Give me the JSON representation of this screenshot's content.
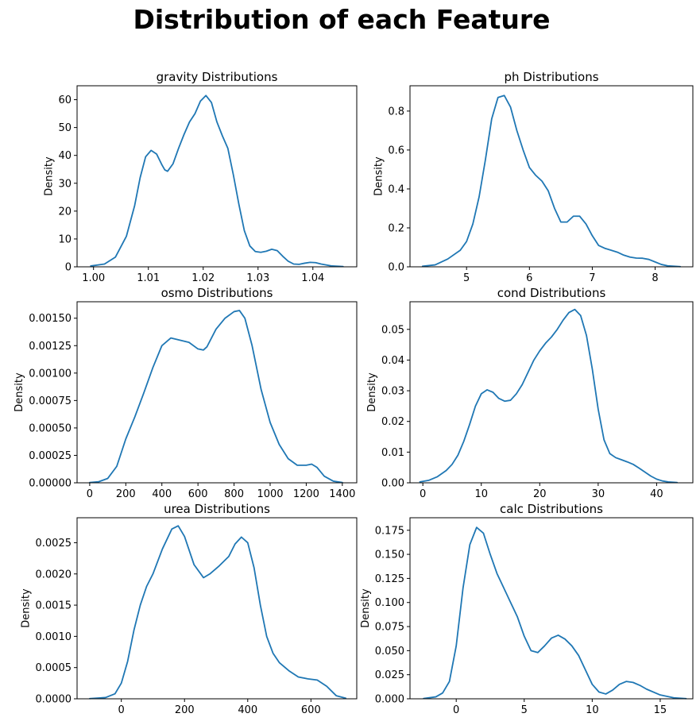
{
  "figure": {
    "title": "Distribution of each Feature",
    "line_color": "#1f77b4"
  },
  "chart_data": [
    {
      "type": "line",
      "title": "gravity Distributions",
      "xlabel": "",
      "ylabel": "Density",
      "xlim": [
        0.997,
        1.048
      ],
      "ylim": [
        0,
        65
      ],
      "xticks": [
        1.0,
        1.01,
        1.02,
        1.03,
        1.04
      ],
      "xtick_labels": [
        "1.00",
        "1.01",
        "1.02",
        "1.03",
        "1.04"
      ],
      "yticks": [
        0,
        10,
        20,
        30,
        40,
        50,
        60
      ],
      "ytick_labels": [
        "0",
        "10",
        "20",
        "30",
        "40",
        "50",
        "60"
      ],
      "x": [
        0.9995,
        1.002,
        1.004,
        1.006,
        1.0075,
        1.0085,
        1.0095,
        1.0105,
        1.0115,
        1.0125,
        1.013,
        1.0135,
        1.0145,
        1.0155,
        1.0165,
        1.0175,
        1.0185,
        1.0195,
        1.0205,
        1.0215,
        1.0225,
        1.0235,
        1.0245,
        1.0255,
        1.0265,
        1.0275,
        1.0285,
        1.0295,
        1.0305,
        1.0315,
        1.0325,
        1.0335,
        1.0345,
        1.0355,
        1.0365,
        1.0375,
        1.0385,
        1.0395,
        1.0405,
        1.0415,
        1.0435,
        1.0455
      ],
      "y": [
        0.3,
        1,
        3.5,
        11,
        22,
        32,
        39.5,
        41.8,
        40.5,
        36.5,
        34.8,
        34.3,
        37,
        42.5,
        47.5,
        52,
        55,
        59.5,
        61.5,
        59,
        52,
        47,
        42.5,
        33,
        22.5,
        13,
        7.5,
        5.5,
        5.2,
        5.6,
        6.3,
        5.8,
        3.8,
        2,
        1,
        0.9,
        1.3,
        1.6,
        1.5,
        1,
        0.3,
        0.1
      ]
    },
    {
      "type": "line",
      "title": "ph Distributions",
      "xlabel": "",
      "ylabel": "Density",
      "xlim": [
        4.1,
        8.6
      ],
      "ylim": [
        0,
        0.93
      ],
      "xticks": [
        5,
        6,
        7,
        8
      ],
      "xtick_labels": [
        "5",
        "6",
        "7",
        "8"
      ],
      "yticks": [
        0.0,
        0.2,
        0.4,
        0.6,
        0.8
      ],
      "ytick_labels": [
        "0.0",
        "0.2",
        "0.4",
        "0.6",
        "0.8"
      ],
      "x": [
        4.3,
        4.5,
        4.7,
        4.9,
        5.0,
        5.1,
        5.2,
        5.3,
        5.4,
        5.5,
        5.6,
        5.7,
        5.8,
        5.9,
        6.0,
        6.1,
        6.2,
        6.3,
        6.4,
        6.5,
        6.6,
        6.7,
        6.8,
        6.9,
        7.0,
        7.1,
        7.2,
        7.3,
        7.4,
        7.5,
        7.6,
        7.7,
        7.8,
        7.9,
        8.0,
        8.1,
        8.2,
        8.4
      ],
      "y": [
        0.003,
        0.01,
        0.04,
        0.085,
        0.13,
        0.22,
        0.36,
        0.55,
        0.76,
        0.87,
        0.88,
        0.82,
        0.7,
        0.6,
        0.51,
        0.47,
        0.44,
        0.39,
        0.3,
        0.23,
        0.23,
        0.26,
        0.26,
        0.22,
        0.16,
        0.11,
        0.095,
        0.085,
        0.075,
        0.06,
        0.05,
        0.045,
        0.044,
        0.038,
        0.025,
        0.012,
        0.005,
        0.001
      ]
    },
    {
      "type": "line",
      "title": "osmo Distributions",
      "xlabel": "",
      "ylabel": "Density",
      "xlim": [
        -70,
        1480
      ],
      "ylim": [
        0,
        0.00165
      ],
      "xticks": [
        0,
        200,
        400,
        600,
        800,
        1000,
        1200,
        1400
      ],
      "xtick_labels": [
        "0",
        "200",
        "400",
        "600",
        "800",
        "1000",
        "1200",
        "1400"
      ],
      "yticks": [
        0,
        0.00025,
        0.0005,
        0.00075,
        0.001,
        0.00125,
        0.0015
      ],
      "ytick_labels": [
        "0.00000",
        "0.00025",
        "0.00050",
        "0.00075",
        "0.00100",
        "0.00125",
        "0.00150"
      ],
      "x": [
        0,
        50,
        100,
        150,
        200,
        250,
        300,
        350,
        400,
        450,
        500,
        550,
        600,
        630,
        650,
        700,
        750,
        800,
        830,
        860,
        900,
        950,
        1000,
        1050,
        1100,
        1150,
        1200,
        1230,
        1260,
        1300,
        1350,
        1400
      ],
      "y": [
        3e-06,
        1e-05,
        4e-05,
        0.00015,
        0.0004,
        0.0006,
        0.00082,
        0.00105,
        0.00125,
        0.00132,
        0.0013,
        0.00128,
        0.00122,
        0.00121,
        0.00124,
        0.0014,
        0.0015,
        0.00156,
        0.00157,
        0.0015,
        0.00125,
        0.00085,
        0.00055,
        0.00035,
        0.00022,
        0.00016,
        0.00016,
        0.00017,
        0.00014,
        6e-05,
        1.5e-05,
        3e-06
      ]
    },
    {
      "type": "line",
      "title": "cond Distributions",
      "xlabel": "",
      "ylabel": "Density",
      "xlim": [
        -2.2,
        46.2
      ],
      "ylim": [
        0,
        0.059
      ],
      "xticks": [
        0,
        10,
        20,
        30,
        40
      ],
      "xtick_labels": [
        "0",
        "10",
        "20",
        "30",
        "40"
      ],
      "yticks": [
        0.0,
        0.01,
        0.02,
        0.03,
        0.04,
        0.05
      ],
      "ytick_labels": [
        "0.00",
        "0.01",
        "0.02",
        "0.03",
        "0.04",
        "0.05"
      ],
      "x": [
        -0.5,
        1,
        2.5,
        4,
        5,
        6,
        7,
        8,
        9,
        10,
        11,
        12,
        13,
        14,
        15,
        16,
        17,
        18,
        19,
        20,
        21,
        22,
        23,
        24,
        25,
        26,
        27,
        28,
        29,
        30,
        31,
        32,
        33,
        34,
        35,
        36,
        37,
        38,
        39,
        40,
        41,
        42,
        43.5
      ],
      "y": [
        0.0003,
        0.0008,
        0.002,
        0.004,
        0.006,
        0.009,
        0.0135,
        0.019,
        0.025,
        0.029,
        0.0303,
        0.0295,
        0.0275,
        0.0266,
        0.0269,
        0.029,
        0.032,
        0.036,
        0.04,
        0.043,
        0.0455,
        0.0475,
        0.05,
        0.053,
        0.0555,
        0.0565,
        0.0545,
        0.048,
        0.037,
        0.024,
        0.014,
        0.0095,
        0.0082,
        0.0075,
        0.0068,
        0.006,
        0.0048,
        0.0035,
        0.0022,
        0.0012,
        0.0006,
        0.0003,
        0.0001
      ]
    },
    {
      "type": "line",
      "title": "urea Distributions",
      "xlabel": "",
      "ylabel": "Density",
      "xlim": [
        -140,
        745
      ],
      "ylim": [
        0,
        0.0029
      ],
      "xticks": [
        0,
        200,
        400,
        600
      ],
      "xtick_labels": [
        "0",
        "200",
        "400",
        "600"
      ],
      "yticks": [
        0,
        0.0005,
        0.001,
        0.0015,
        0.002,
        0.0025
      ],
      "ytick_labels": [
        "0.0000",
        "0.0005",
        "0.0010",
        "0.0015",
        "0.0020",
        "0.0025"
      ],
      "x": [
        -100,
        -50,
        -20,
        0,
        20,
        40,
        60,
        80,
        100,
        130,
        160,
        180,
        200,
        230,
        260,
        280,
        310,
        340,
        360,
        380,
        400,
        420,
        440,
        460,
        480,
        500,
        530,
        560,
        590,
        620,
        650,
        680,
        710
      ],
      "y": [
        3e-06,
        2e-05,
        8e-05,
        0.00025,
        0.0006,
        0.0011,
        0.0015,
        0.0018,
        0.002,
        0.0024,
        0.00272,
        0.00277,
        0.0026,
        0.00215,
        0.00194,
        0.002,
        0.00213,
        0.00228,
        0.00248,
        0.00259,
        0.0025,
        0.0021,
        0.0015,
        0.001,
        0.00073,
        0.00058,
        0.00045,
        0.00035,
        0.00032,
        0.0003,
        0.0002,
        5e-05,
        1e-05
      ]
    },
    {
      "type": "line",
      "title": "calc Distributions",
      "xlabel": "",
      "ylabel": "Density",
      "xlim": [
        -3.4,
        17.4
      ],
      "ylim": [
        0,
        0.188
      ],
      "xticks": [
        0,
        5,
        10,
        15
      ],
      "xtick_labels": [
        "0",
        "5",
        "10",
        "15"
      ],
      "yticks": [
        0.0,
        0.025,
        0.05,
        0.075,
        0.1,
        0.125,
        0.15,
        0.175
      ],
      "ytick_labels": [
        "0.000",
        "0.025",
        "0.050",
        "0.075",
        "0.100",
        "0.125",
        "0.150",
        "0.175"
      ],
      "x": [
        -2.4,
        -1.5,
        -1,
        -0.5,
        0,
        0.5,
        1,
        1.5,
        2,
        2.5,
        3,
        3.5,
        4,
        4.5,
        5,
        5.5,
        6,
        6.5,
        7,
        7.5,
        8,
        8.5,
        9,
        9.5,
        10,
        10.5,
        11,
        11.5,
        12,
        12.5,
        13,
        13.5,
        14,
        15,
        16,
        16.9
      ],
      "y": [
        0.0003,
        0.002,
        0.006,
        0.018,
        0.055,
        0.115,
        0.16,
        0.178,
        0.172,
        0.15,
        0.13,
        0.115,
        0.1,
        0.085,
        0.065,
        0.05,
        0.048,
        0.055,
        0.063,
        0.066,
        0.062,
        0.055,
        0.045,
        0.03,
        0.015,
        0.007,
        0.005,
        0.009,
        0.015,
        0.018,
        0.017,
        0.014,
        0.01,
        0.004,
        0.001,
        0.0002
      ]
    }
  ]
}
